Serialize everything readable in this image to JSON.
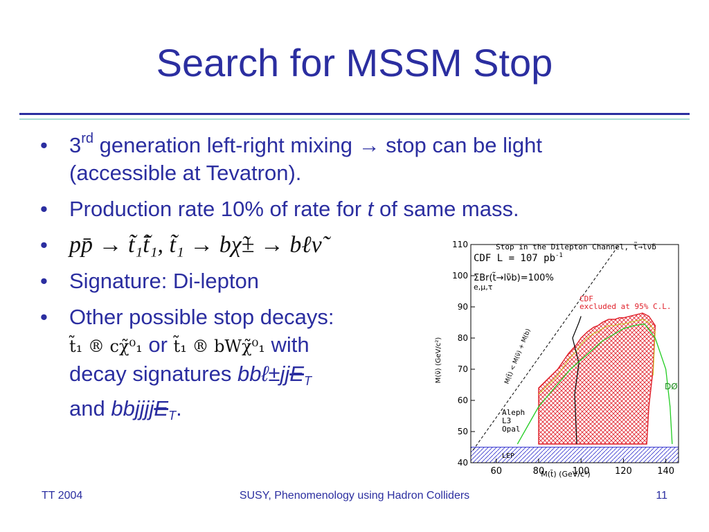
{
  "slide": {
    "title": "Search for MSSM Stop",
    "footer_left": "TT 2004",
    "footer_center": "SUSY, Phenomenology using Hadron Colliders",
    "footer_right": "11"
  },
  "bullets": {
    "b1": {
      "pre": "3",
      "sup": "rd",
      "post": " generation left-right mixing →  stop can be light (accessible at Tevatron)."
    },
    "b2": {
      "pre": "Production rate 10% of rate for ",
      "italic": "t",
      "post": " of same mass."
    },
    "b3": {
      "formula": "pp̄ → t̃₁t̃̄₁,  t̃₁ → bχ̃± → bℓν̃"
    },
    "b4": {
      "text": "Signature: Di-lepton"
    },
    "b5": {
      "line1": "Other possible stop decays:",
      "decay1": "t̃₁ ® cχ̃⁰₁",
      "or": " or ",
      "decay2": "t̃₁ ® bWχ̃⁰₁",
      "with": " with",
      "line3_pre": "decay signatures ",
      "line3_it": "bbℓ±jj",
      "line3_et": "E",
      "line3_sub": "T",
      "line4_pre": "and ",
      "line4_it": "bbjjjj",
      "line4_et": "E",
      "line4_sub": "T",
      "line4_post": "."
    }
  },
  "plot": {
    "header": "Stop in the Dilepton Channel, t̃→lν̃b",
    "legend_l1": "CDF  L = 107  pb",
    "legend_l1_sup": "-1",
    "legend_l2": "ΣBr(t̃→lν̃b)=100%",
    "legend_l3": "e,μ,τ",
    "cdf_l1": "CDF",
    "cdf_l2": "excluded at 95% C.L.",
    "d0_label": "DØ",
    "aleph_l1": "Aleph",
    "aleph_l2": "L3",
    "aleph_l3": "Opal",
    "lep_label": "LEP",
    "diag_label": "M(t̃) < M(ν̃) + M(b)",
    "xlabel": "M(t̃) (GeV/c²)",
    "ylabel": "M(ν̃) (GeV/c²)",
    "colors": {
      "axis": "#000000",
      "cdf_region": "#e0202a",
      "d0": "#22cc22",
      "lep": "#3a3ad0",
      "cdf_curve": "#c8c820"
    }
  },
  "chart_data": {
    "type": "area",
    "title": "Stop in the Dilepton Channel, t̃→lν̃b",
    "xlabel": "M(t̃) (GeV/c²)",
    "ylabel": "M(ν̃) (GeV/c²)",
    "xlim": [
      48,
      146
    ],
    "ylim": [
      40,
      110
    ],
    "xticks": [
      60,
      80,
      100,
      120,
      140
    ],
    "yticks": [
      40,
      50,
      60,
      70,
      80,
      90,
      100,
      110
    ],
    "series": [
      {
        "name": "CDF excluded at 95% C.L.",
        "x": [
          80,
          80,
          83,
          86,
          89,
          92,
          94,
          96,
          98,
          100,
          103,
          106,
          108,
          110,
          113,
          116,
          118,
          120,
          123,
          126,
          129,
          132,
          135,
          134,
          132,
          131,
          100
        ],
        "y": [
          46,
          64,
          66,
          68,
          70,
          73,
          75,
          76.5,
          78,
          80,
          82,
          83.5,
          84,
          85,
          86,
          86,
          86.5,
          86.5,
          87,
          87.5,
          88,
          87,
          84,
          70,
          58,
          46,
          46
        ]
      },
      {
        "name": "DØ",
        "x": [
          70,
          75,
          80,
          85,
          90,
          95,
          100,
          105,
          110,
          115,
          120,
          125,
          130,
          135,
          140,
          142,
          143
        ],
        "y": [
          46,
          52,
          58,
          62,
          66,
          70,
          73,
          76,
          79,
          81,
          83,
          84,
          84.5,
          80,
          70,
          58,
          46
        ]
      },
      {
        "name": "Aleph L3 Opal",
        "x": [
          49,
          100
        ],
        "y": [
          45,
          45
        ]
      },
      {
        "name": "M(t̃) < M(ν̃) + M(b)",
        "x": [
          49,
          118
        ],
        "y": [
          44,
          110
        ]
      }
    ]
  }
}
